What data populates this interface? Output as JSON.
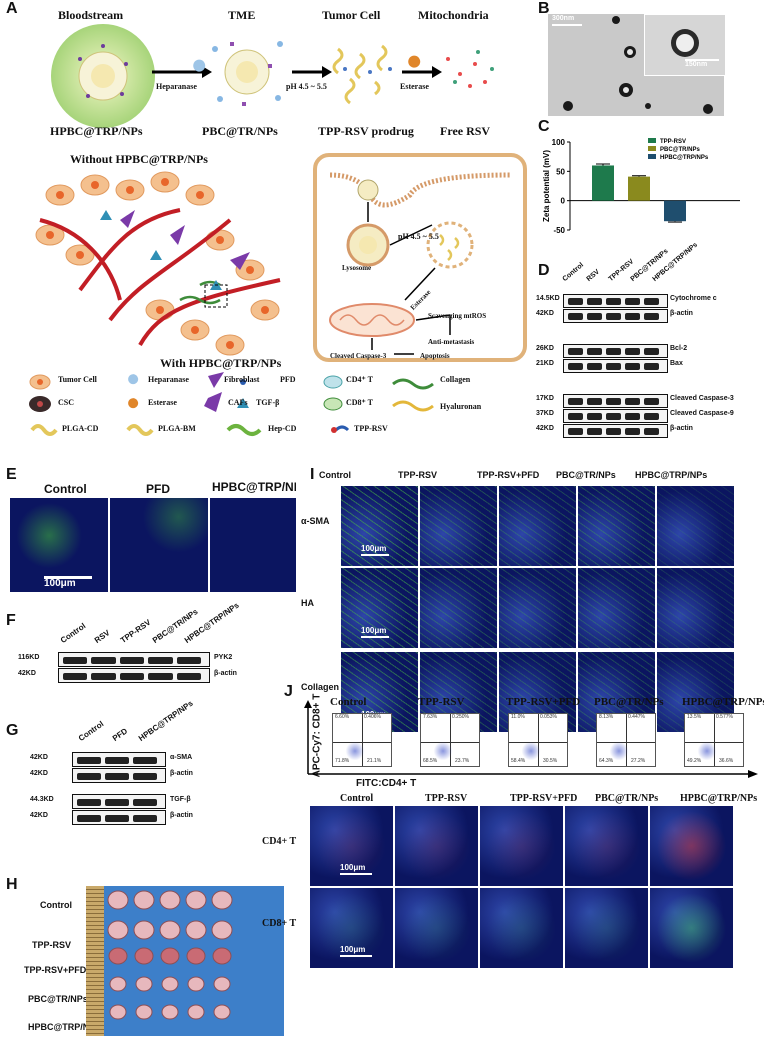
{
  "panels": {
    "A": "A",
    "B": "B",
    "C": "C",
    "D": "D",
    "E": "E",
    "F": "F",
    "G": "G",
    "H": "H",
    "I": "I",
    "J": "J"
  },
  "A": {
    "stages": [
      "Bloodstream",
      "TME",
      "Tumor Cell",
      "Mitochondria"
    ],
    "np_labels": [
      "HPBC@TRP/NPs",
      "PBC@TR/NPs",
      "TPP-RSV prodrug",
      "Free RSV"
    ],
    "arrow_labels": [
      "Heparanase",
      "pH 4.5 ~ 5.5",
      "Esterase"
    ],
    "without": "Without HPBC@TRP/NPs",
    "with": "With HPBC@TRP/NPs",
    "cell_labels": [
      "Lysosome",
      "pH 4.5 ~ 5.5",
      "Esterase",
      "Scavenging mtROS",
      "Anti-metastasis",
      "Cleaved Caspase-3",
      "Apoptosis"
    ],
    "legend": [
      "Tumor Cell",
      "Heparanase",
      "Fibroblast",
      "PFD",
      "CD4⁺ T",
      "Collagen",
      "CSC",
      "Esterase",
      "CAFs",
      "TGF-β",
      "CD8⁺ T",
      "Hyaluronan",
      "PLGA-CD",
      "PLGA-BM",
      "Hep-CD",
      "TPP-RSV"
    ]
  },
  "B": {
    "scale1": "300nm",
    "scale2": "150nm"
  },
  "C": {
    "chart_data": {
      "type": "bar",
      "categories": [
        "TPP-RSV",
        "PBC@TR/NPs",
        "HPBC@TRP/NPs"
      ],
      "values": [
        60,
        41,
        -35
      ],
      "errors": [
        2.5,
        1.5,
        1.5
      ],
      "colors": [
        "#1e7a4c",
        "#8a8a1e",
        "#1f4e6e"
      ],
      "ylabel": "Zeta potential (mV)",
      "yticks": [
        100,
        50,
        0,
        -50
      ],
      "ylim": [
        -50,
        100
      ],
      "legend": [
        "TPP-RSV",
        "PBC@TR/NPs",
        "HPBC@TRP/NPs"
      ]
    }
  },
  "D": {
    "lanes": [
      "Control",
      "RSV",
      "TPP-RSV",
      "PBC@TR/NPs",
      "HPBC@TRP/NPs"
    ],
    "rows": [
      {
        "kd": "14.5KD",
        "name": "Cytochrome c"
      },
      {
        "kd": "42KD",
        "name": "β-actin"
      },
      {
        "kd": "26KD",
        "name": "Bcl-2"
      },
      {
        "kd": "21KD",
        "name": "Bax"
      },
      {
        "kd": "17KD",
        "name": "Cleaved Caspase-3"
      },
      {
        "kd": "37KD",
        "name": "Cleaved Caspase-9"
      },
      {
        "kd": "42KD",
        "name": "β-actin"
      }
    ]
  },
  "E": {
    "cols": [
      "Control",
      "PFD",
      "HPBC@TRP/NPs"
    ],
    "scale": "100μm"
  },
  "F": {
    "lanes": [
      "Control",
      "RSV",
      "TPP-RSV",
      "PBC@TR/NPs",
      "HPBC@TRP/NPs"
    ],
    "rows": [
      {
        "kd": "116KD",
        "name": "PYK2"
      },
      {
        "kd": "42KD",
        "name": "β-actin"
      }
    ]
  },
  "G": {
    "lanes": [
      "Control",
      "PFD",
      "HPBC@TRP/NPs"
    ],
    "rows": [
      {
        "kd": "42KD",
        "name": "α-SMA"
      },
      {
        "kd": "42KD",
        "name": "β-actin"
      },
      {
        "kd": "44.3KD",
        "name": "TGF-β"
      },
      {
        "kd": "42KD",
        "name": "β-actin"
      }
    ]
  },
  "H": {
    "groups": [
      "Control",
      "TPP-RSV",
      "TPP-RSV+PFD",
      "PBC@TR/NPs",
      "HPBC@TRP/NPs"
    ]
  },
  "I": {
    "cols": [
      "Control",
      "TPP-RSV",
      "TPP-RSV+PFD",
      "PBC@TR/NPs",
      "HPBC@TRP/NPs"
    ],
    "rows": [
      "α-SMA",
      "HA",
      "Collagen"
    ],
    "scale": "100μm"
  },
  "J": {
    "cols": [
      "Control",
      "TPP-RSV",
      "TPP-RSV+PFD",
      "PBC@TR/NPs",
      "HPBC@TRP/NPs"
    ],
    "ylabel": "APC-Cy7:  CD8+ T",
    "xlabel": "FITC:CD4+ T",
    "quads": [
      {
        "q1": "6.60%",
        "q2": "0.406%",
        "q4": "71.8%",
        "q3": "21.1%"
      },
      {
        "q1": "7.63%",
        "q2": "0.250%",
        "q4": "68.5%",
        "q3": "23.7%"
      },
      {
        "q1": "11.0%",
        "q2": "0.053%",
        "q4": "58.4%",
        "q3": "30.5%"
      },
      {
        "q1": "8.13%",
        "q2": "0.447%",
        "q4": "64.3%",
        "q3": "27.2%"
      },
      {
        "q1": "13.5%",
        "q2": "0.577%",
        "q4": "49.2%",
        "q3": "36.6%"
      }
    ],
    "rows": [
      "CD4+ T",
      "CD8+ T"
    ],
    "scale": "100μm"
  }
}
